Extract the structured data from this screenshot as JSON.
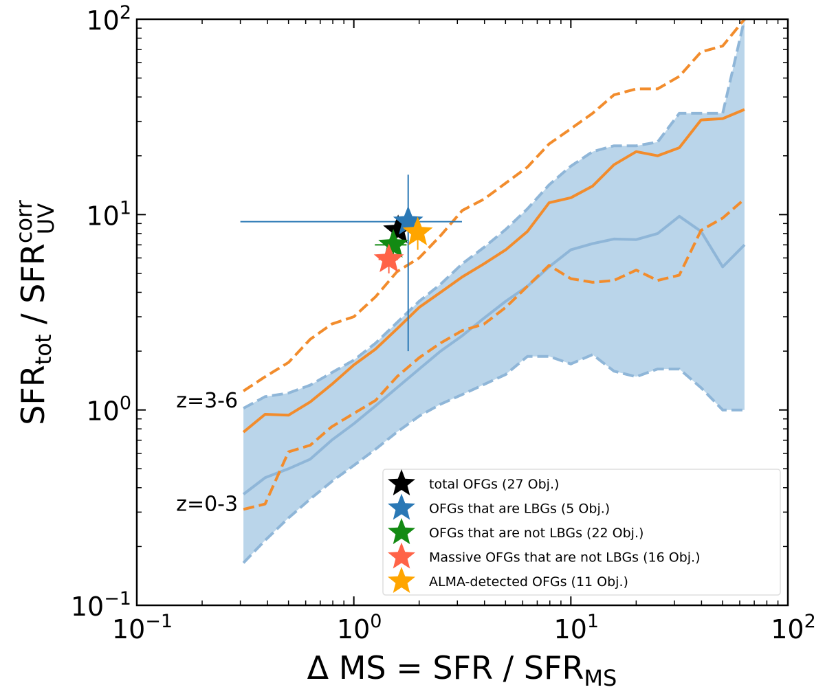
{
  "chart_data": {
    "type": "line",
    "x_scale": "log",
    "y_scale": "log",
    "xlim": [
      0.1,
      100
    ],
    "ylim": [
      0.1,
      100
    ],
    "xlabel": {
      "main": "Δ MS = SFR / SFR",
      "sub": "MS"
    },
    "ylabel": {
      "main": "SFR",
      "sub1": "tot",
      "mid": " / SFR",
      "sup": "corr",
      "sub2": "UV"
    },
    "x_ticks": [
      {
        "value": 0.1,
        "base": "10",
        "exp": "−1"
      },
      {
        "value": 1,
        "base": "10",
        "exp": "0"
      },
      {
        "value": 10,
        "base": "10",
        "exp": "1"
      },
      {
        "value": 100,
        "base": "10",
        "exp": "2"
      }
    ],
    "y_ticks": [
      {
        "value": 0.1,
        "base": "10",
        "exp": "−1"
      },
      {
        "value": 1,
        "base": "10",
        "exp": "0"
      },
      {
        "value": 10,
        "base": "10",
        "exp": "1"
      },
      {
        "value": 100,
        "base": "10",
        "exp": "2"
      }
    ],
    "x": [
      0.31,
      0.39,
      0.5,
      0.63,
      0.79,
      1.0,
      1.26,
      1.58,
      2.0,
      2.51,
      3.16,
      3.98,
      5.01,
      6.31,
      7.94,
      10.0,
      12.6,
      15.8,
      20.0,
      25.1,
      31.6,
      39.8,
      50.1,
      63.1
    ],
    "bands": [
      {
        "name": "z=0-3 range",
        "color": "#a9cbe5",
        "edge_color": "#8fb6d8",
        "lower": [
          0.165,
          0.215,
          0.28,
          0.35,
          0.43,
          0.52,
          0.63,
          0.77,
          0.93,
          1.07,
          1.2,
          1.35,
          1.52,
          1.88,
          1.88,
          1.72,
          1.92,
          1.58,
          1.48,
          1.62,
          1.62,
          1.3,
          1.0,
          1.0
        ],
        "upper": [
          1.02,
          1.17,
          1.22,
          1.34,
          1.55,
          1.8,
          2.2,
          2.8,
          3.6,
          4.4,
          5.6,
          6.8,
          8.4,
          10.7,
          14.2,
          17.7,
          21.0,
          22.5,
          22.5,
          23.5,
          33.0,
          33.0,
          33.0,
          100.0
        ]
      }
    ],
    "series": [
      {
        "name": "z=0-3 median",
        "color": "#8fb6d8",
        "style": "solid",
        "width": 4,
        "values": [
          0.37,
          0.45,
          0.5,
          0.56,
          0.7,
          0.85,
          1.05,
          1.3,
          1.62,
          2.0,
          2.4,
          2.95,
          3.6,
          4.3,
          5.4,
          6.6,
          7.1,
          7.5,
          7.45,
          8.0,
          9.8,
          8.2,
          5.4,
          7.0
        ]
      },
      {
        "name": "z=3-6 median",
        "color": "#f28c2c",
        "style": "solid",
        "width": 4,
        "values": [
          0.77,
          0.95,
          0.94,
          1.1,
          1.35,
          1.7,
          2.05,
          2.6,
          3.35,
          4.0,
          4.8,
          5.6,
          6.6,
          8.2,
          11.5,
          12.2,
          14.0,
          18.0,
          21.0,
          20.0,
          22.0,
          30.5,
          31.0,
          34.5
        ]
      },
      {
        "name": "z=3-6 upper",
        "color": "#f28c2c",
        "style": "dashed",
        "width": 4,
        "values": [
          1.25,
          1.48,
          1.75,
          2.3,
          2.75,
          3.0,
          3.8,
          5.1,
          6.0,
          7.8,
          10.5,
          12.0,
          14.5,
          17.5,
          23.0,
          27.5,
          33.0,
          41.0,
          44.0,
          44.0,
          51.0,
          68.0,
          73.0,
          100.0
        ]
      },
      {
        "name": "z=3-6 lower",
        "color": "#f28c2c",
        "style": "dashed",
        "width": 4,
        "values": [
          0.31,
          0.33,
          0.61,
          0.66,
          0.82,
          0.96,
          1.12,
          1.48,
          1.85,
          2.2,
          2.55,
          2.75,
          3.35,
          4.3,
          5.5,
          4.7,
          4.5,
          4.6,
          5.2,
          4.6,
          4.9,
          8.3,
          9.6,
          12.0
        ]
      }
    ],
    "points": [
      {
        "name": "total OFGs",
        "color": "#000000",
        "x": 1.6,
        "y": 8.3
      },
      {
        "name": "OFGs that are LBGs",
        "color": "#2a78b5",
        "x": 1.78,
        "y": 9.2,
        "xerr": [
          0.3,
          3.15
        ],
        "yerr": [
          2.0,
          16.0
        ]
      },
      {
        "name": "OFGs that are not LBGs",
        "color": "#138a13",
        "x": 1.52,
        "y": 7.0,
        "xerr": [
          1.25,
          1.75
        ],
        "yerr": [
          6.0,
          8.0
        ]
      },
      {
        "name": "Massive OFGs that are not LBGs",
        "color": "#ff6347",
        "x": 1.45,
        "y": 5.9,
        "xerr": [
          1.3,
          1.6
        ],
        "yerr": [
          5.0,
          6.8
        ]
      },
      {
        "name": "ALMA-detected OFGs",
        "color": "#ffa500",
        "x": 1.97,
        "y": 8.1,
        "xerr": [
          1.85,
          2.05
        ],
        "yerr": [
          6.6,
          9.0
        ]
      }
    ],
    "annotations": [
      {
        "text": "z=3-6",
        "color": "#f28c2c"
      },
      {
        "text": "z=0-3",
        "color": "#2a78b5"
      }
    ],
    "legend": {
      "position": "lower-right",
      "entries": [
        {
          "label": "total OFGs (27 Obj.)",
          "color": "#000000"
        },
        {
          "label": "OFGs that are LBGs (5 Obj.)",
          "color": "#2a78b5"
        },
        {
          "label": "OFGs that are not LBGs (22 Obj.)",
          "color": "#138a13"
        },
        {
          "label": "Massive OFGs that are not LBGs (16 Obj.)",
          "color": "#ff6347"
        },
        {
          "label": "ALMA-detected OFGs (11 Obj.)",
          "color": "#ffa500"
        }
      ]
    }
  }
}
